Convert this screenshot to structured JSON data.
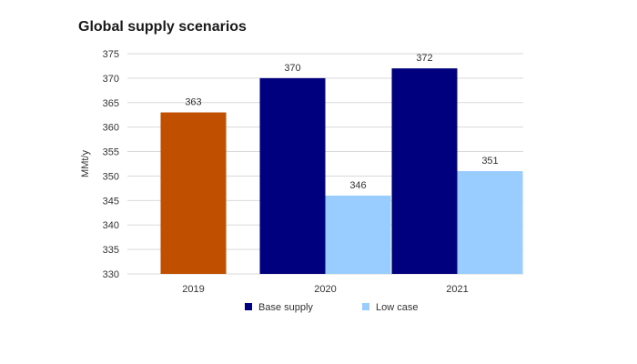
{
  "chart_data": {
    "type": "bar",
    "title": "Global supply scenarios",
    "ylabel": "MMt/y",
    "xlabel": "",
    "ylim": [
      330,
      375
    ],
    "yticks": [
      330,
      335,
      340,
      345,
      350,
      355,
      360,
      365,
      370,
      375
    ],
    "grid": true,
    "legend": "bottom",
    "categories": [
      "2019",
      "2020",
      "2021"
    ],
    "series": [
      {
        "name": "",
        "color": "#C04F00",
        "values": [
          363,
          null,
          null
        ]
      },
      {
        "name": "Base supply",
        "color": "#00007F",
        "values": [
          null,
          370,
          372
        ]
      },
      {
        "name": "Low case",
        "color": "#99CCFF",
        "values": [
          null,
          346,
          351
        ]
      }
    ]
  }
}
